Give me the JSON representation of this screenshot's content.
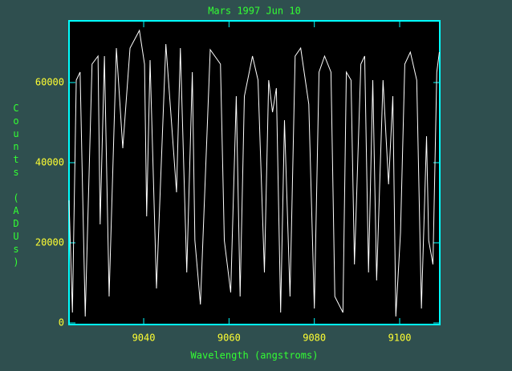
{
  "chart_data": {
    "type": "line",
    "title": "Mars 1997 Jun 10",
    "xlabel": "Wavelength (angstroms)",
    "ylabel": "Counts (ADUs)",
    "color": "#ffffff",
    "x": [
      9022.5,
      9023.3,
      9024.2,
      9025.1,
      9026.3,
      9027.9,
      9029.3,
      9029.8,
      9030.8,
      9031.9,
      9033.6,
      9035.1,
      9036.8,
      9039.0,
      9040.2,
      9040.7,
      9041.5,
      9043.0,
      9045.2,
      9047.7,
      9048.6,
      9050.1,
      9051.4,
      9052.0,
      9053.3,
      9055.6,
      9058.0,
      9058.9,
      9060.4,
      9061.7,
      9062.6,
      9063.6,
      9065.5,
      9066.8,
      9068.3,
      9069.3,
      9070.2,
      9071.1,
      9072.1,
      9073.0,
      9074.3,
      9075.5,
      9076.8,
      9078.7,
      9080.0,
      9081.1,
      9082.4,
      9083.9,
      9084.8,
      9086.7,
      9087.5,
      9088.6,
      9089.4,
      9090.9,
      9091.8,
      9092.7,
      9093.7,
      9094.6,
      9096.1,
      9097.4,
      9098.4,
      9099.1,
      9100.2,
      9101.2,
      9102.5,
      9104.0,
      9105.1,
      9106.3,
      9106.8,
      9107.8,
      9108.7,
      9109.3
    ],
    "values": [
      30600,
      2600,
      60600,
      62600,
      1600,
      64600,
      66600,
      24600,
      66600,
      6600,
      68600,
      43600,
      68600,
      73000,
      64600,
      26600,
      65600,
      8600,
      69600,
      32600,
      68600,
      12600,
      62600,
      20600,
      4600,
      68200,
      64600,
      20600,
      7600,
      56600,
      6600,
      56600,
      66600,
      60600,
      12600,
      60600,
      52600,
      58600,
      2600,
      50600,
      6600,
      66600,
      68600,
      54600,
      3600,
      62600,
      66600,
      62600,
      6600,
      2600,
      62600,
      60600,
      14600,
      64600,
      66600,
      12600,
      60600,
      10600,
      60600,
      34600,
      56600,
      1600,
      22600,
      64600,
      67600,
      60600,
      3600,
      46600,
      20600,
      14600,
      62600,
      67600
    ],
    "xlim": [
      9022.5,
      9109.4
    ],
    "ylim": [
      -400,
      75400
    ],
    "xticks": [
      9040,
      9060,
      9080,
      9100
    ],
    "yticks": [
      0,
      20000,
      40000,
      60000
    ]
  }
}
